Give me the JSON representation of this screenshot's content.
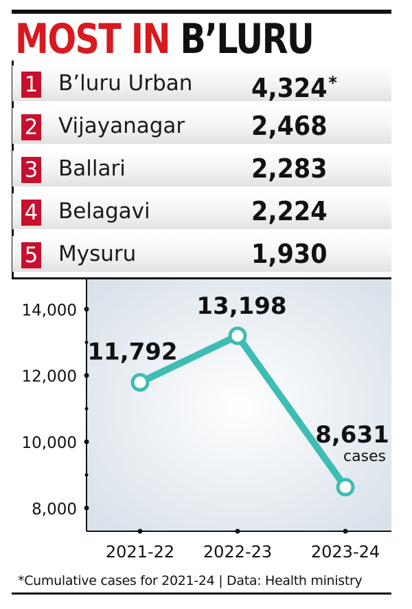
{
  "title": {
    "part1": "MOST IN",
    "part2": "B’LURU"
  },
  "ranking": [
    {
      "rank": "1",
      "name": "B’luru Urban",
      "value": "4,324",
      "mark": "*"
    },
    {
      "rank": "2",
      "name": "Vijayanagar",
      "value": "2,468"
    },
    {
      "rank": "3",
      "name": "Ballari",
      "value": "2,283"
    },
    {
      "rank": "4",
      "name": "Belagavi",
      "value": "2,224"
    },
    {
      "rank": "5",
      "name": "Mysuru",
      "value": "1,930"
    }
  ],
  "chart_data": {
    "type": "line",
    "x": [
      "2021-22",
      "2022-23",
      "2023-24"
    ],
    "series": [
      {
        "values": [
          11792,
          13198,
          8631
        ]
      }
    ],
    "data_labels": [
      "11,792",
      "13,198",
      "8,631"
    ],
    "last_label_unit": "cases",
    "y_ticks": [
      8000,
      10000,
      12000,
      14000
    ],
    "y_tick_labels": [
      "8,000",
      "10,000",
      "12,000",
      "14,000"
    ],
    "ylim": [
      7300,
      14900
    ],
    "line_color": "#3dbdb3",
    "grid": false
  },
  "footnote": "*Cumulative cases for 2021-24 | Data: Health ministry",
  "colors": {
    "accent": "#d71920",
    "rank_badge": "#c8102e",
    "line": "#3dbdb3"
  }
}
